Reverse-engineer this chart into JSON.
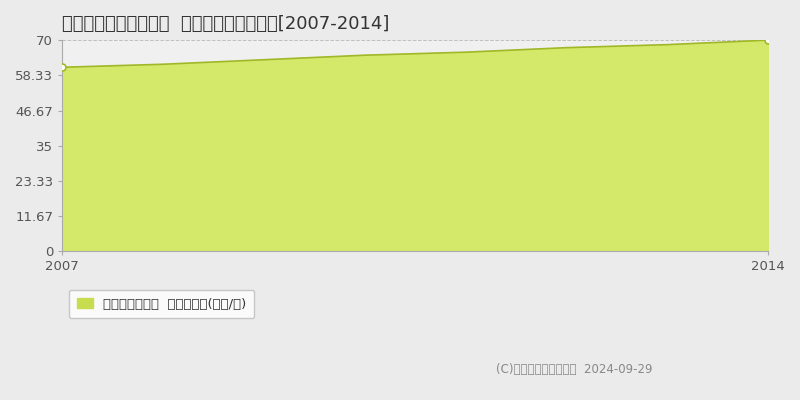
{
  "title": "札幌市豊平区美園五条  マンション価格推移[2007-2014]",
  "years": [
    2007,
    2008,
    2009,
    2010,
    2011,
    2012,
    2013,
    2014
  ],
  "values": [
    61.0,
    62.0,
    63.5,
    65.0,
    66.0,
    67.5,
    68.5,
    70.0
  ],
  "yticks": [
    0,
    11.67,
    23.33,
    35,
    46.67,
    58.33,
    70
  ],
  "ytick_labels": [
    "0",
    "11.67",
    "23.33",
    "35",
    "46.67",
    "58.33",
    "70"
  ],
  "ylim": [
    0,
    70
  ],
  "xlim": [
    2007,
    2014
  ],
  "xticks": [
    2007,
    2014
  ],
  "line_color": "#a0b828",
  "fill_color": "#d4e86a",
  "fill_alpha": 1.0,
  "marker_color": "#ffffff",
  "marker_edge_color": "#a0b828",
  "background_color": "#ebebeb",
  "plot_bg_color": "#f0f0f0",
  "grid_color": "#c0c0c0",
  "legend_label": "マンション価格  平均坪単価(万円/坪)",
  "legend_marker_color": "#c8dc50",
  "copyright_text": "(C)土地価格ドットコム  2024-09-29",
  "title_fontsize": 13,
  "tick_fontsize": 9.5,
  "legend_fontsize": 9.5
}
